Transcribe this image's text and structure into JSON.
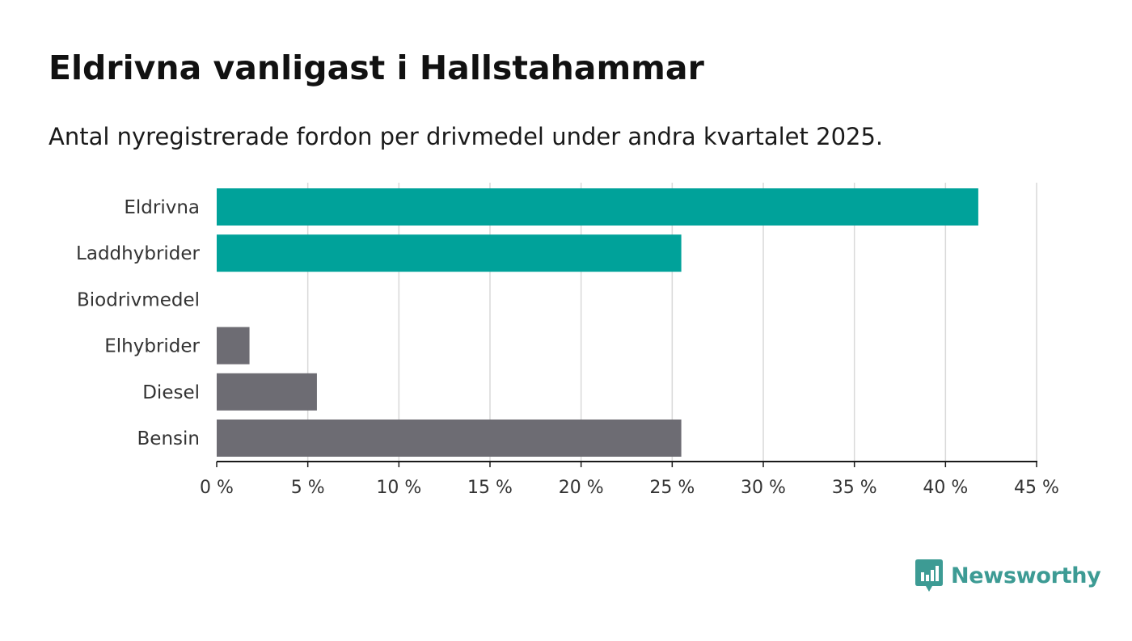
{
  "title": "Eldrivna vanligast i Hallstahammar",
  "subtitle": "Antal nyregistrerade fordon per drivmedel under andra kvartalet 2025.",
  "brand": {
    "name": "Newsworthy",
    "color": "#3d9b94"
  },
  "chart_data": {
    "type": "bar",
    "orientation": "horizontal",
    "title": "Eldrivna vanligast i Hallstahammar",
    "subtitle": "Antal nyregistrerade fordon per drivmedel under andra kvartalet 2025.",
    "categories": [
      "Eldrivna",
      "Laddhybrider",
      "Biodrivmedel",
      "Elhybrider",
      "Diesel",
      "Bensin"
    ],
    "values": [
      41.8,
      25.5,
      0,
      1.8,
      5.5,
      25.5
    ],
    "colors": [
      "#00a29a",
      "#00a29a",
      "#00a29a",
      "#6d6c73",
      "#6d6c73",
      "#6d6c73"
    ],
    "xlim": [
      0,
      45
    ],
    "xticks": [
      0,
      5,
      10,
      15,
      20,
      25,
      30,
      35,
      40,
      45
    ],
    "tick_labels": [
      "0 %",
      "5 %",
      "10 %",
      "15 %",
      "20 %",
      "25 %",
      "30 %",
      "35 %",
      "40 %",
      "45 %"
    ],
    "xlabel": "",
    "ylabel": "",
    "grid": "vertical"
  }
}
